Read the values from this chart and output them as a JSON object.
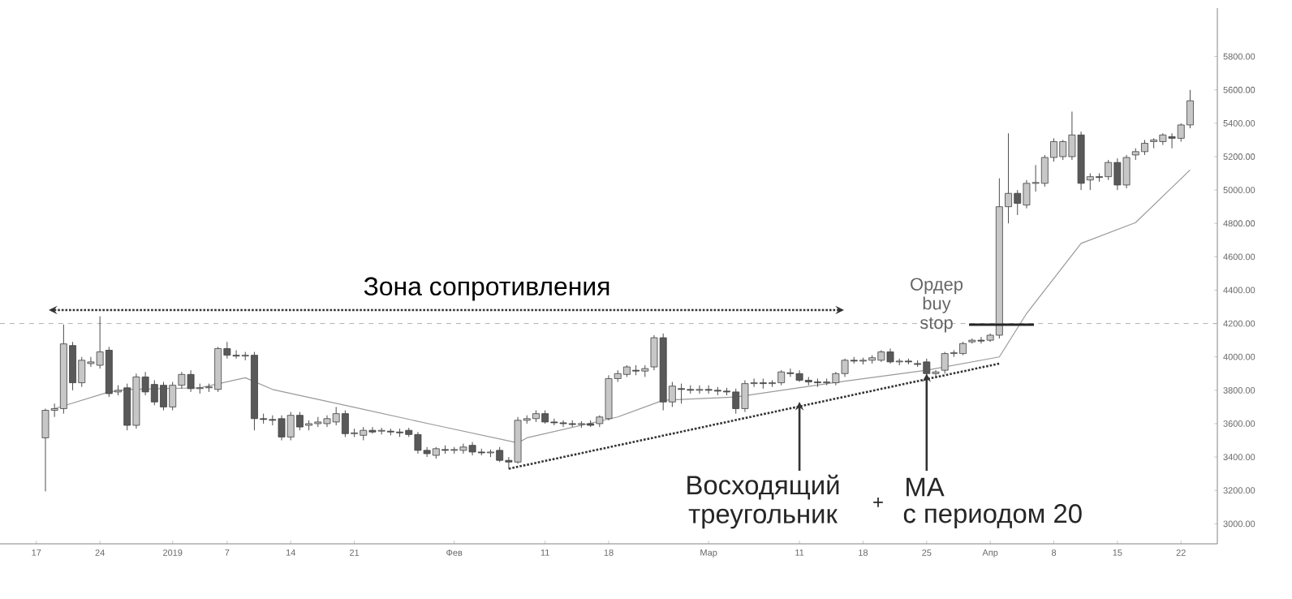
{
  "chart_data": {
    "type": "candlestick",
    "x": [
      "2018-12-18",
      "2018-12-19",
      "2018-12-20",
      "2018-12-21",
      "2018-12-22",
      "2018-12-23",
      "2018-12-24",
      "2018-12-25",
      "2018-12-26",
      "2018-12-27",
      "2018-12-28",
      "2018-12-29",
      "2018-12-30",
      "2018-12-31",
      "2019-01-01",
      "2019-01-02",
      "2019-01-03",
      "2019-01-04",
      "2019-01-05",
      "2019-01-06",
      "2019-01-07",
      "2019-01-08",
      "2019-01-09",
      "2019-01-10",
      "2019-01-11",
      "2019-01-12",
      "2019-01-13",
      "2019-01-14",
      "2019-01-15",
      "2019-01-16",
      "2019-01-17",
      "2019-01-18",
      "2019-01-19",
      "2019-01-20",
      "2019-01-21",
      "2019-01-22",
      "2019-01-23",
      "2019-01-24",
      "2019-01-25",
      "2019-01-26",
      "2019-01-27",
      "2019-01-28",
      "2019-01-29",
      "2019-01-30",
      "2019-01-31",
      "2019-02-01",
      "2019-02-02",
      "2019-02-03",
      "2019-02-04",
      "2019-02-05",
      "2019-02-06",
      "2019-02-07",
      "2019-02-08",
      "2019-02-09",
      "2019-02-10",
      "2019-02-11",
      "2019-02-12",
      "2019-02-13",
      "2019-02-14",
      "2019-02-15",
      "2019-02-16",
      "2019-02-17",
      "2019-02-18",
      "2019-02-19",
      "2019-02-20",
      "2019-02-21",
      "2019-02-22",
      "2019-02-23",
      "2019-02-24",
      "2019-02-25",
      "2019-02-26",
      "2019-02-27",
      "2019-02-28",
      "2019-03-01",
      "2019-03-02",
      "2019-03-03",
      "2019-03-04",
      "2019-03-05",
      "2019-03-06",
      "2019-03-07",
      "2019-03-08",
      "2019-03-09",
      "2019-03-10",
      "2019-03-11",
      "2019-03-12",
      "2019-03-13",
      "2019-03-14",
      "2019-03-15",
      "2019-03-16",
      "2019-03-17",
      "2019-03-18",
      "2019-03-19",
      "2019-03-20",
      "2019-03-21",
      "2019-03-22",
      "2019-03-23",
      "2019-03-24",
      "2019-03-25",
      "2019-03-26",
      "2019-03-27",
      "2019-03-28",
      "2019-03-29",
      "2019-03-30",
      "2019-03-31",
      "2019-04-01",
      "2019-04-02",
      "2019-04-03",
      "2019-04-04",
      "2019-04-05",
      "2019-04-06",
      "2019-04-07",
      "2019-04-08",
      "2019-04-09",
      "2019-04-10",
      "2019-04-11",
      "2019-04-12",
      "2019-04-13",
      "2019-04-14",
      "2019-04-15",
      "2019-04-16",
      "2019-04-17",
      "2019-04-18",
      "2019-04-19",
      "2019-04-20",
      "2019-04-21",
      "2019-04-22",
      "2019-04-23"
    ],
    "ohlc": [
      [
        3515,
        3690,
        3194,
        3680
      ],
      [
        3680,
        3720,
        3640,
        3690
      ],
      [
        3690,
        4194,
        3660,
        4078
      ],
      [
        4068,
        4090,
        3800,
        3845
      ],
      [
        3845,
        4000,
        3820,
        3980
      ],
      [
        3960,
        4000,
        3940,
        3970
      ],
      [
        3950,
        4243,
        3930,
        4030
      ],
      [
        4040,
        4060,
        3760,
        3780
      ],
      [
        3790,
        3830,
        3770,
        3800
      ],
      [
        3815,
        3840,
        3560,
        3590
      ],
      [
        3590,
        3900,
        3570,
        3880
      ],
      [
        3880,
        3910,
        3770,
        3790
      ],
      [
        3835,
        3860,
        3710,
        3730
      ],
      [
        3830,
        3850,
        3680,
        3700
      ],
      [
        3700,
        3850,
        3680,
        3830
      ],
      [
        3830,
        3910,
        3810,
        3895
      ],
      [
        3895,
        3920,
        3790,
        3810
      ],
      [
        3810,
        3840,
        3780,
        3815
      ],
      [
        3815,
        3840,
        3790,
        3820
      ],
      [
        3805,
        4060,
        3790,
        4050
      ],
      [
        4050,
        4090,
        3990,
        4010
      ],
      [
        4010,
        4040,
        3990,
        4005
      ],
      [
        4005,
        4030,
        3980,
        4010
      ],
      [
        4010,
        4030,
        3560,
        3630
      ],
      [
        3630,
        3660,
        3600,
        3625
      ],
      [
        3625,
        3650,
        3590,
        3620
      ],
      [
        3630,
        3650,
        3500,
        3520
      ],
      [
        3520,
        3670,
        3500,
        3650
      ],
      [
        3650,
        3670,
        3560,
        3580
      ],
      [
        3590,
        3620,
        3560,
        3600
      ],
      [
        3600,
        3640,
        3580,
        3610
      ],
      [
        3600,
        3650,
        3580,
        3630
      ],
      [
        3610,
        3700,
        3590,
        3660
      ],
      [
        3660,
        3680,
        3520,
        3540
      ],
      [
        3540,
        3570,
        3520,
        3545
      ],
      [
        3530,
        3580,
        3500,
        3560
      ],
      [
        3560,
        3580,
        3540,
        3550
      ],
      [
        3555,
        3575,
        3535,
        3560
      ],
      [
        3555,
        3570,
        3530,
        3550
      ],
      [
        3550,
        3570,
        3520,
        3545
      ],
      [
        3560,
        3575,
        3520,
        3535
      ],
      [
        3535,
        3550,
        3420,
        3440
      ],
      [
        3440,
        3460,
        3400,
        3420
      ],
      [
        3410,
        3460,
        3390,
        3450
      ],
      [
        3445,
        3470,
        3420,
        3440
      ],
      [
        3440,
        3460,
        3420,
        3445
      ],
      [
        3440,
        3480,
        3420,
        3460
      ],
      [
        3470,
        3490,
        3410,
        3430
      ],
      [
        3430,
        3450,
        3410,
        3425
      ],
      [
        3425,
        3445,
        3400,
        3430
      ],
      [
        3440,
        3460,
        3370,
        3380
      ],
      [
        3380,
        3400,
        3330,
        3370
      ],
      [
        3370,
        3640,
        3360,
        3620
      ],
      [
        3620,
        3650,
        3600,
        3630
      ],
      [
        3630,
        3680,
        3610,
        3660
      ],
      [
        3660,
        3680,
        3600,
        3610
      ],
      [
        3610,
        3630,
        3590,
        3605
      ],
      [
        3605,
        3620,
        3580,
        3600
      ],
      [
        3600,
        3620,
        3580,
        3595
      ],
      [
        3595,
        3615,
        3575,
        3600
      ],
      [
        3600,
        3620,
        3580,
        3590
      ],
      [
        3600,
        3650,
        3580,
        3640
      ],
      [
        3630,
        3890,
        3620,
        3870
      ],
      [
        3870,
        3920,
        3850,
        3900
      ],
      [
        3895,
        3950,
        3880,
        3940
      ],
      [
        3920,
        3950,
        3890,
        3915
      ],
      [
        3915,
        3950,
        3880,
        3930
      ],
      [
        3940,
        4130,
        3920,
        4115
      ],
      [
        4115,
        4140,
        3680,
        3730
      ],
      [
        3730,
        3850,
        3700,
        3825
      ],
      [
        3810,
        3840,
        3720,
        3805
      ],
      [
        3805,
        3830,
        3780,
        3800
      ],
      [
        3800,
        3830,
        3780,
        3805
      ],
      [
        3805,
        3830,
        3780,
        3800
      ],
      [
        3800,
        3820,
        3770,
        3795
      ],
      [
        3795,
        3815,
        3770,
        3790
      ],
      [
        3790,
        3810,
        3660,
        3690
      ],
      [
        3690,
        3860,
        3670,
        3840
      ],
      [
        3840,
        3870,
        3820,
        3845
      ],
      [
        3845,
        3870,
        3810,
        3840
      ],
      [
        3840,
        3860,
        3820,
        3845
      ],
      [
        3845,
        3920,
        3830,
        3910
      ],
      [
        3905,
        3930,
        3880,
        3900
      ],
      [
        3900,
        3920,
        3850,
        3860
      ],
      [
        3860,
        3880,
        3830,
        3850
      ],
      [
        3850,
        3870,
        3820,
        3845
      ],
      [
        3845,
        3870,
        3830,
        3850
      ],
      [
        3845,
        3910,
        3830,
        3900
      ],
      [
        3900,
        3990,
        3880,
        3980
      ],
      [
        3980,
        4000,
        3960,
        3975
      ],
      [
        3975,
        3995,
        3955,
        3980
      ],
      [
        3980,
        4010,
        3960,
        3995
      ],
      [
        3980,
        4040,
        3970,
        4030
      ],
      [
        4030,
        4050,
        3960,
        3970
      ],
      [
        3970,
        3990,
        3950,
        3975
      ],
      [
        3975,
        3990,
        3955,
        3970
      ],
      [
        3960,
        3980,
        3940,
        3955
      ],
      [
        3970,
        3990,
        3890,
        3900
      ],
      [
        3900,
        3920,
        3880,
        3910
      ],
      [
        3920,
        4030,
        3900,
        4020
      ],
      [
        4020,
        4040,
        4000,
        4025
      ],
      [
        4020,
        4090,
        4010,
        4080
      ],
      [
        4090,
        4110,
        4080,
        4100
      ],
      [
        4100,
        4120,
        4080,
        4095
      ],
      [
        4100,
        4140,
        4090,
        4130
      ],
      [
        4130,
        5070,
        4110,
        4900
      ],
      [
        4900,
        5340,
        4800,
        4980
      ],
      [
        4980,
        5000,
        4850,
        4920
      ],
      [
        4910,
        5060,
        4890,
        5040
      ],
      [
        5040,
        5150,
        4990,
        5045
      ],
      [
        5040,
        5210,
        5020,
        5195
      ],
      [
        5195,
        5310,
        5170,
        5290
      ],
      [
        5200,
        5300,
        5180,
        5290
      ],
      [
        5200,
        5470,
        5180,
        5330
      ],
      [
        5330,
        5350,
        5000,
        5040
      ],
      [
        5060,
        5100,
        5000,
        5080
      ],
      [
        5080,
        5100,
        5050,
        5075
      ],
      [
        5080,
        5180,
        5060,
        5165
      ],
      [
        5165,
        5190,
        5000,
        5030
      ],
      [
        5030,
        5210,
        5010,
        5195
      ],
      [
        5210,
        5250,
        5180,
        5230
      ],
      [
        5230,
        5300,
        5210,
        5280
      ],
      [
        5290,
        5310,
        5250,
        5300
      ],
      [
        5290,
        5340,
        5270,
        5330
      ],
      [
        5320,
        5340,
        5250,
        5310
      ],
      [
        5310,
        5400,
        5290,
        5390
      ],
      [
        5390,
        5600,
        5370,
        5535
      ]
    ],
    "series": [
      {
        "type": "line",
        "color": "#9a9a9a",
        "x": [
          "2018-12-19",
          "2018-12-25",
          "2018-12-27",
          "2019-01-04",
          "2019-01-09",
          "2019-01-12",
          "2019-01-20",
          "2019-01-30",
          "2019-02-08",
          "2019-02-09",
          "2019-02-19",
          "2019-02-24",
          "2019-03-04",
          "2019-03-16",
          "2019-03-25",
          "2019-04-02",
          "2019-04-05",
          "2019-04-11",
          "2019-04-17",
          "2019-04-23"
        ],
        "values": [
          3690,
          3790,
          3805,
          3815,
          3875,
          3805,
          3710,
          3590,
          3485,
          3515,
          3640,
          3740,
          3760,
          3855,
          3920,
          4000,
          4260,
          4680,
          4805,
          5120
        ]
      },
      {
        "type": "line",
        "color": "#333333",
        "line_style": "dotted",
        "x": [
          "2019-02-07",
          "2019-04-02"
        ],
        "values": [
          3330,
          3960
        ]
      }
    ],
    "ref_lines": [
      {
        "axis": "y",
        "value": 4200,
        "color": "#b0b0b0",
        "line_style": "dashed"
      }
    ],
    "xlim": [
      "2018-12-13",
      "2019-04-26"
    ],
    "xticks": [
      {
        "value": "2018-12-17",
        "label": "17"
      },
      {
        "value": "2018-12-24",
        "label": "24"
      },
      {
        "value": "2019-01-01",
        "label": "2019"
      },
      {
        "value": "2019-01-07",
        "label": "7"
      },
      {
        "value": "2019-01-14",
        "label": "14"
      },
      {
        "value": "2019-01-21",
        "label": "21"
      },
      {
        "value": "2019-02-01",
        "label": "Фев"
      },
      {
        "value": "2019-02-11",
        "label": "11"
      },
      {
        "value": "2019-02-18",
        "label": "18"
      },
      {
        "value": "2019-03-01",
        "label": "Мар"
      },
      {
        "value": "2019-03-11",
        "label": "11"
      },
      {
        "value": "2019-03-18",
        "label": "18"
      },
      {
        "value": "2019-03-25",
        "label": "25"
      },
      {
        "value": "2019-04-01",
        "label": "Апр"
      },
      {
        "value": "2019-04-08",
        "label": "8"
      },
      {
        "value": "2019-04-15",
        "label": "15"
      },
      {
        "value": "2019-04-22",
        "label": "22"
      }
    ],
    "ylim": [
      2880,
      6090
    ],
    "yticks": [
      {
        "value": 3000,
        "label": "3000.00"
      },
      {
        "value": 3200,
        "label": "3200.00"
      },
      {
        "value": 3400,
        "label": "3400.00"
      },
      {
        "value": 3600,
        "label": "3600.00"
      },
      {
        "value": 3800,
        "label": "3800.00"
      },
      {
        "value": 4000,
        "label": "4000.00"
      },
      {
        "value": 4200,
        "label": "4200.00"
      },
      {
        "value": 4400,
        "label": "4400.00"
      },
      {
        "value": 4600,
        "label": "4600.00"
      },
      {
        "value": 4800,
        "label": "4800.00"
      },
      {
        "value": 5000,
        "label": "5000.00"
      },
      {
        "value": 5200,
        "label": "5200.00"
      },
      {
        "value": 5400,
        "label": "5400.00"
      },
      {
        "value": 5600,
        "label": "5600.00"
      },
      {
        "value": 5800,
        "label": "5800.00"
      }
    ],
    "annotations": [
      "Зона сопротивления",
      "Ордер buy stop",
      {
        "text": "Восходящий треугольник",
        "x": "2019-03-11",
        "y": 3750
      },
      "+",
      {
        "text": "MA",
        "x": "2019-03-25",
        "y": 3920
      },
      "с периодом 20"
    ]
  }
}
